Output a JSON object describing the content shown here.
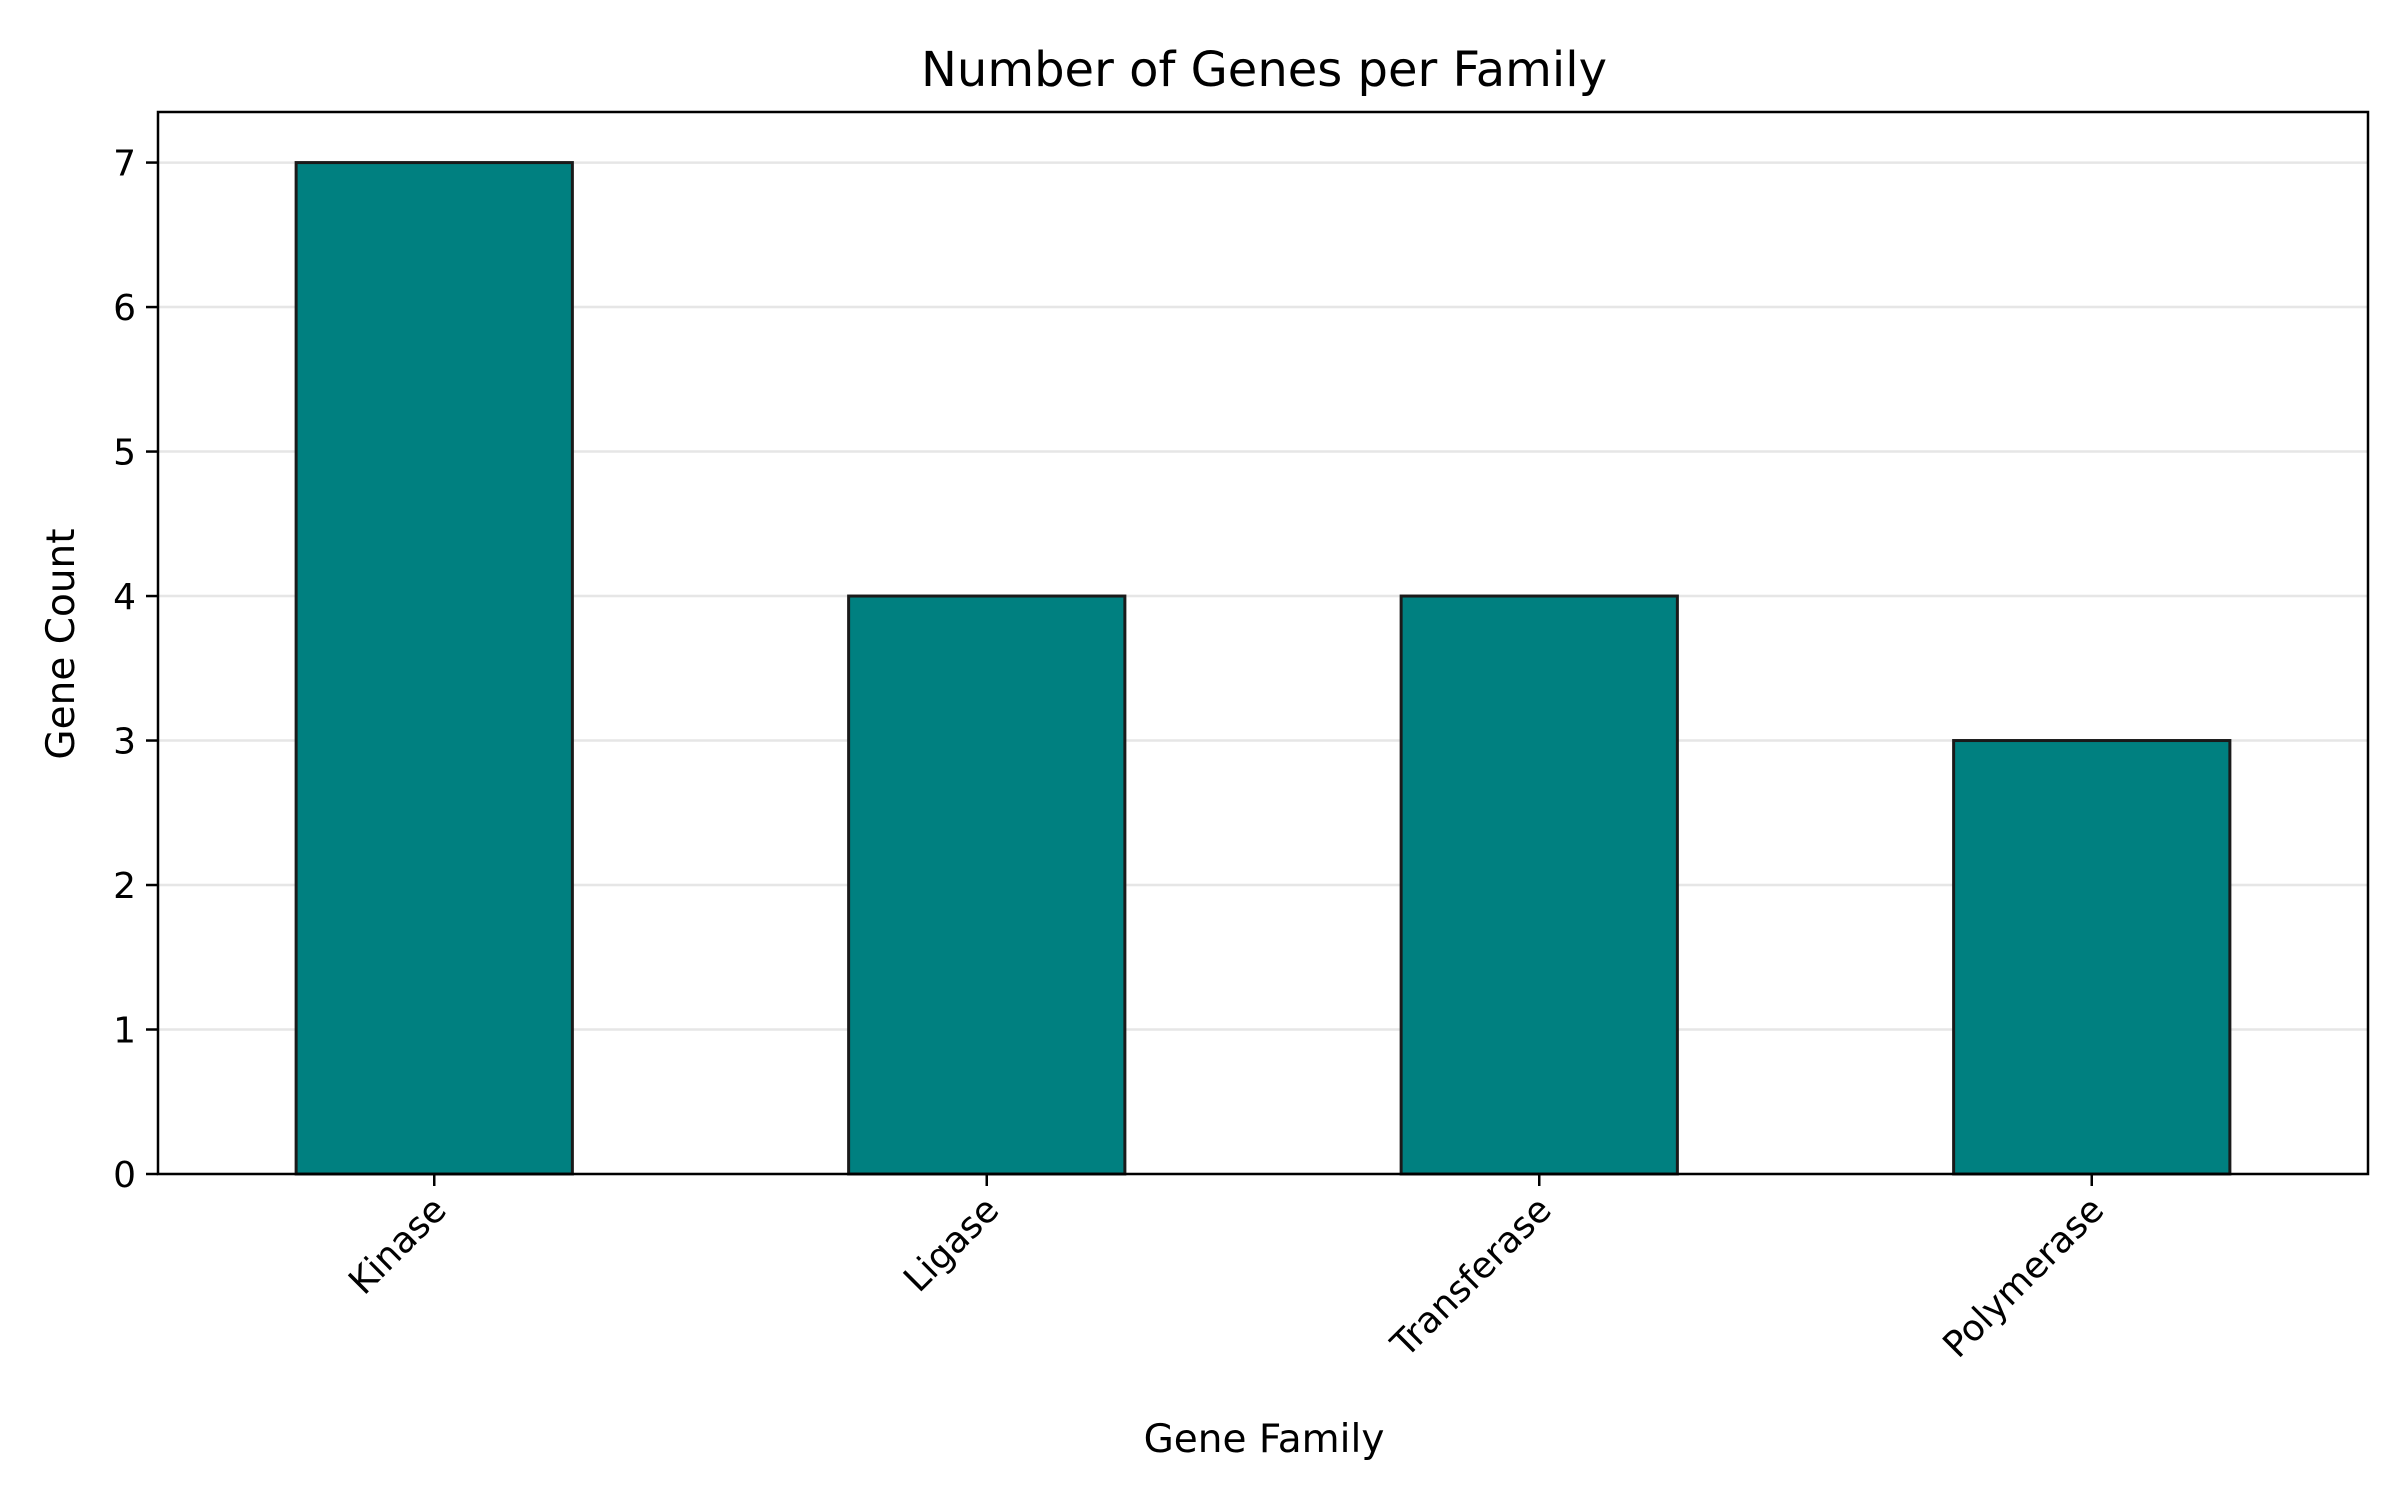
{
  "chart_data": {
    "type": "bar",
    "title": "Number of Genes per Family",
    "xlabel": "Gene Family",
    "ylabel": "Gene Count",
    "categories": [
      "Kinase",
      "Ligase",
      "Transferase",
      "Polymerase"
    ],
    "values": [
      7,
      4,
      4,
      3
    ],
    "ylim": [
      0,
      7.35
    ],
    "yticks": [
      "0",
      "1",
      "2",
      "3",
      "4",
      "5",
      "6",
      "7"
    ],
    "grid": "horizontal",
    "x_tick_rotation_deg": 45,
    "colors": {
      "bar_fill": "#008080",
      "bar_edge": "#1a1a1a",
      "grid": "#e6e6e6",
      "axis": "#000000"
    }
  }
}
